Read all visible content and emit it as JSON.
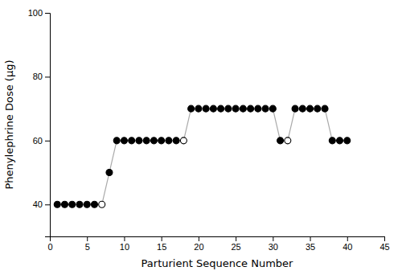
{
  "chart_data": {
    "type": "line",
    "xlabel": "Parturient Sequence Number",
    "ylabel": "Phenylephrine Dose (µg)",
    "x": [
      1,
      2,
      3,
      4,
      5,
      6,
      7,
      8,
      9,
      10,
      11,
      12,
      13,
      14,
      15,
      16,
      17,
      18,
      19,
      20,
      21,
      22,
      23,
      24,
      25,
      26,
      27,
      28,
      29,
      30,
      31,
      32,
      33,
      34,
      35,
      36,
      37,
      38,
      39,
      40
    ],
    "values": [
      40,
      40,
      40,
      40,
      40,
      40,
      40,
      50,
      60,
      60,
      60,
      60,
      60,
      60,
      60,
      60,
      60,
      60,
      70,
      70,
      70,
      70,
      70,
      70,
      70,
      70,
      70,
      70,
      70,
      70,
      60,
      60,
      70,
      70,
      70,
      70,
      70,
      60,
      60,
      60
    ],
    "color": "#aaaaaa",
    "colors": [
      "#000000",
      "#000000",
      "#000000",
      "#000000",
      "#000000",
      "#000000",
      "#ffffff",
      "#000000",
      "#000000",
      "#000000",
      "#000000",
      "#000000",
      "#000000",
      "#000000",
      "#000000",
      "#000000",
      "#000000",
      "#ffffff",
      "#000000",
      "#000000",
      "#000000",
      "#000000",
      "#000000",
      "#000000",
      "#000000",
      "#000000",
      "#000000",
      "#000000",
      "#000000",
      "#000000",
      "#000000",
      "#ffffff",
      "#000000",
      "#000000",
      "#000000",
      "#000000",
      "#000000",
      "#000000",
      "#000000",
      "#000000"
    ],
    "marker": "circle",
    "xlim": [
      0,
      45
    ],
    "ylim": [
      30,
      100
    ],
    "xticks": [
      0,
      5,
      10,
      15,
      20,
      25,
      30,
      35,
      40,
      45
    ],
    "yticks": [
      40,
      60,
      80,
      100
    ],
    "grid": false
  }
}
